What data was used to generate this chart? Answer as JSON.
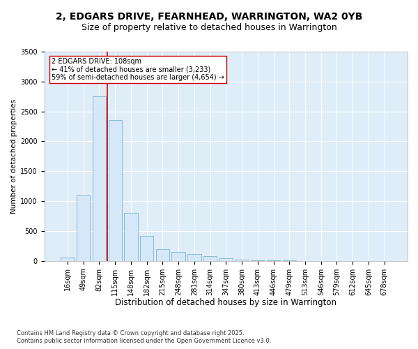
{
  "title1": "2, EDGARS DRIVE, FEARNHEAD, WARRINGTON, WA2 0YB",
  "title2": "Size of property relative to detached houses in Warrington",
  "xlabel": "Distribution of detached houses by size in Warrington",
  "ylabel": "Number of detached properties",
  "bar_color": "#d6e8f7",
  "bar_edge_color": "#7ab3d8",
  "background_color": "#deedf7",
  "grid_color": "#ffffff",
  "fig_facecolor": "#ffffff",
  "categories": [
    "16sqm",
    "49sqm",
    "82sqm",
    "115sqm",
    "148sqm",
    "182sqm",
    "215sqm",
    "248sqm",
    "281sqm",
    "314sqm",
    "347sqm",
    "380sqm",
    "413sqm",
    "446sqm",
    "479sqm",
    "513sqm",
    "546sqm",
    "579sqm",
    "612sqm",
    "645sqm",
    "678sqm"
  ],
  "values": [
    50,
    1100,
    2750,
    2360,
    800,
    420,
    190,
    150,
    115,
    75,
    42,
    18,
    12,
    6,
    4,
    2,
    1,
    1,
    0,
    0,
    0
  ],
  "vline_pos": 2.5,
  "vline_color": "#cc0000",
  "annotation_line1": "2 EDGARS DRIVE: 108sqm",
  "annotation_line2": "← 41% of detached houses are smaller (3,233)",
  "annotation_line3": "59% of semi-detached houses are larger (4,654) →",
  "annotation_box_color": "#ffffff",
  "annotation_box_edge": "#cc0000",
  "ylim": [
    0,
    3500
  ],
  "yticks": [
    0,
    500,
    1000,
    1500,
    2000,
    2500,
    3000,
    3500
  ],
  "footnote1": "Contains HM Land Registry data © Crown copyright and database right 2025.",
  "footnote2": "Contains public sector information licensed under the Open Government Licence v3.0.",
  "title1_fontsize": 10,
  "title2_fontsize": 9,
  "xlabel_fontsize": 8.5,
  "ylabel_fontsize": 7.5,
  "tick_fontsize": 7,
  "annotation_fontsize": 7,
  "footnote_fontsize": 6
}
